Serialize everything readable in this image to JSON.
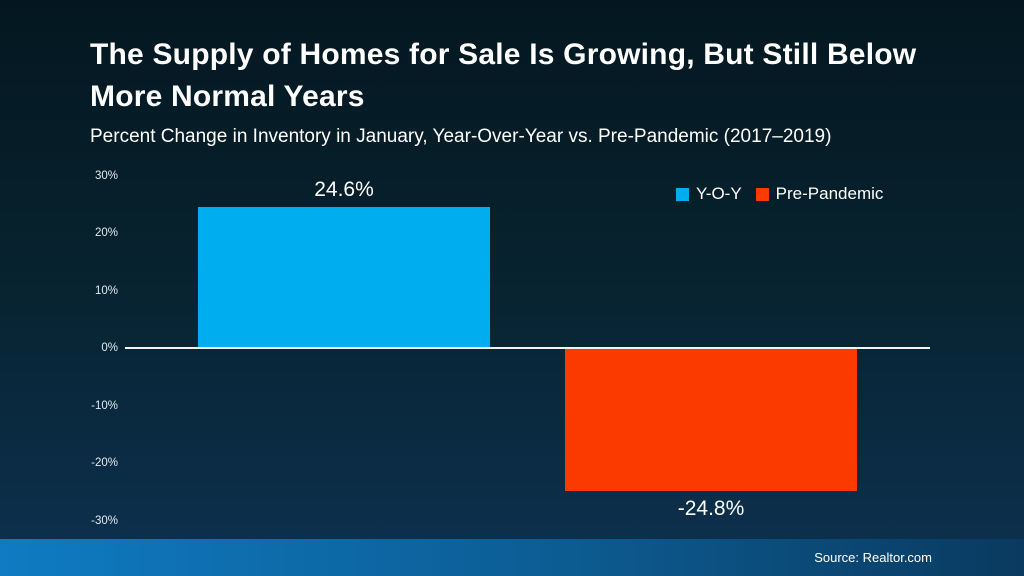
{
  "chart_data": {
    "type": "bar",
    "title": "The Supply of Homes for Sale Is Growing, But Still Below More Normal Years",
    "subtitle": "Percent Change in Inventory in January, Year-Over-Year vs. Pre-Pandemic (2017–2019)",
    "series": [
      {
        "name": "Y-O-Y",
        "value": 24.6,
        "data_label": "24.6%",
        "color": "#00aeef"
      },
      {
        "name": "Pre-Pandemic",
        "value": -24.8,
        "data_label": "-24.8%",
        "color": "#fb3a00"
      }
    ],
    "xlabel": "",
    "ylabel": "",
    "ylim": [
      -30,
      30
    ],
    "yticks": [
      {
        "value": 30,
        "label": "30%"
      },
      {
        "value": 20,
        "label": "20%"
      },
      {
        "value": 10,
        "label": "10%"
      },
      {
        "value": 0,
        "label": "0%"
      },
      {
        "value": -10,
        "label": "-10%"
      },
      {
        "value": -20,
        "label": "-20%"
      },
      {
        "value": -30,
        "label": "-30%"
      }
    ],
    "grid": false,
    "legend_position": "top-right",
    "zero_line_color": "#f2f4f6"
  },
  "footer": {
    "source": "Source: Realtor.com"
  },
  "colors": {
    "background_top": "#041720",
    "background_bottom": "#0d3150",
    "footer_gradient_left": "#0f7bc2",
    "footer_gradient_right": "#0a3a5f",
    "text": "#ffffff"
  }
}
